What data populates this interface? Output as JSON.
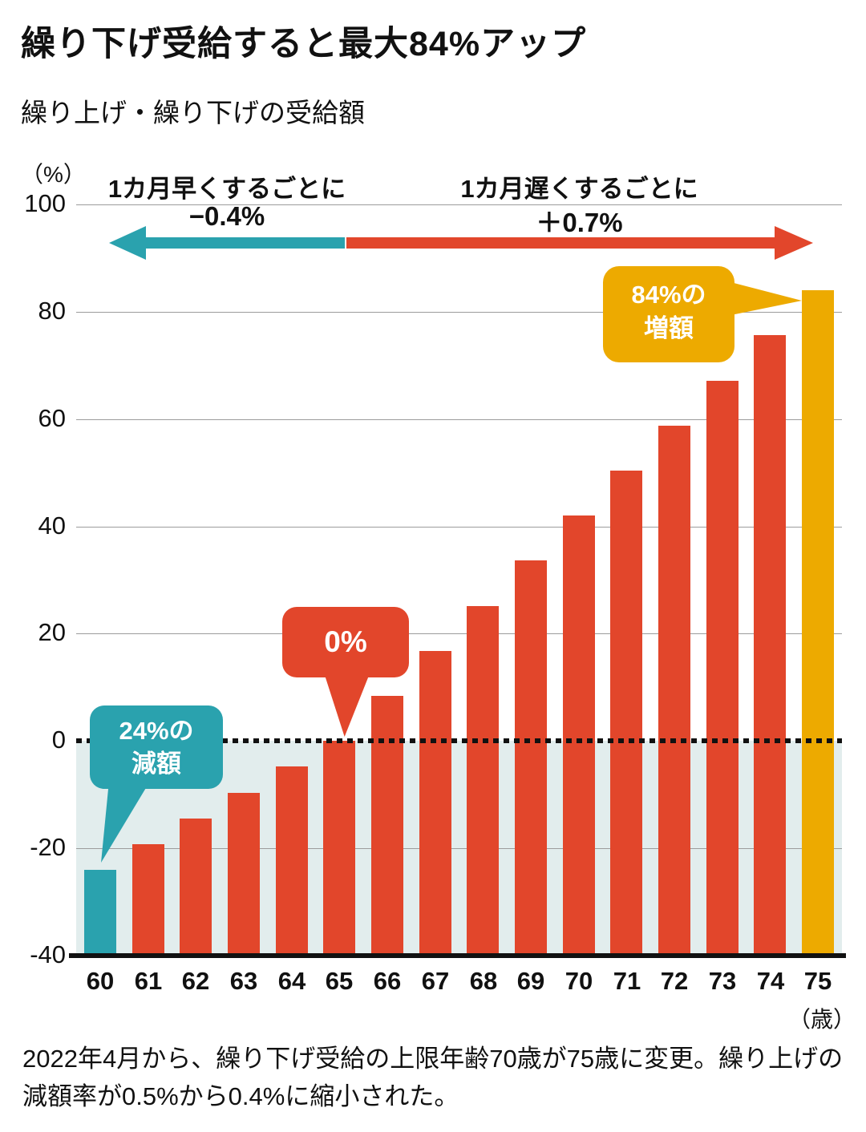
{
  "header": {
    "title": "繰り下げ受給すると最大84%アップ",
    "subtitle": "繰り上げ・繰り下げの受給額"
  },
  "chart_data": {
    "type": "bar",
    "title": "繰り上げ・繰り下げの受給額",
    "y_unit": "（%）",
    "x_unit": "（歳）",
    "categories": [
      60,
      61,
      62,
      63,
      64,
      65,
      66,
      67,
      68,
      69,
      70,
      71,
      72,
      73,
      74,
      75
    ],
    "values": [
      -24,
      -19.2,
      -14.4,
      -9.6,
      -4.8,
      0,
      8.4,
      16.8,
      25.2,
      33.6,
      42,
      50.4,
      58.8,
      67.2,
      75.6,
      84
    ],
    "ylim": [
      -40,
      100
    ],
    "yticks": [
      100,
      80,
      60,
      40,
      20,
      0,
      -20,
      -40
    ],
    "grid": true,
    "zero_line_style": "dotted",
    "bars_drawn_from": -40,
    "colors": {
      "bar_default": "#e2462b",
      "bar_early": "#2aa2ae",
      "bar_max": "#edaa00",
      "below_zero_bg": "#e2eded",
      "gridline": "#9c9c9c",
      "axis": "#111111"
    },
    "special_bars": {
      "60": "bar_early",
      "75": "bar_max"
    },
    "annotations": {
      "early": {
        "line1": "1カ月早くするごとに",
        "line2": "−0.4%",
        "direction": "left"
      },
      "late": {
        "line1": "1カ月遅くするごとに",
        "line2": "＋0.7%",
        "direction": "right"
      },
      "bubbles": [
        {
          "id": "reduction",
          "line1": "24%の",
          "line2": "減額",
          "points_to_age": 60
        },
        {
          "id": "zero",
          "line1": "0%",
          "line2": "",
          "points_to_age": 65
        },
        {
          "id": "increase",
          "line1": "84%の",
          "line2": "増額",
          "points_to_age": 75
        }
      ]
    }
  },
  "footer": {
    "note": "2022年4月から、繰り下げ受給の上限年齢70歳が75歳に変更。繰り上げの減額率が0.5%から0.4%に縮小された。"
  }
}
